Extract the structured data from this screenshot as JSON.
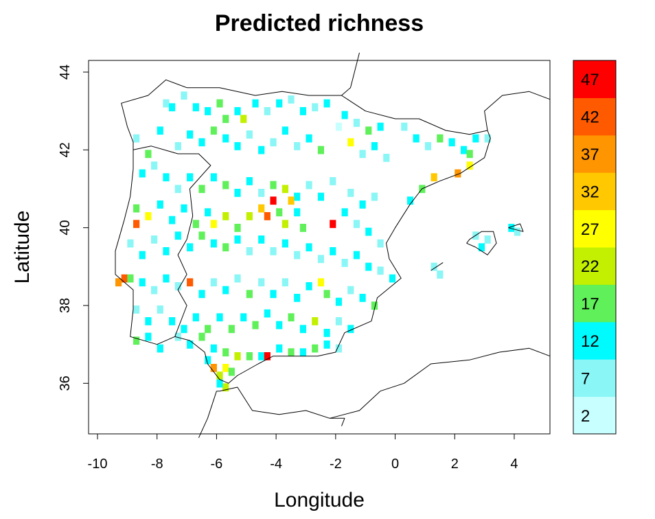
{
  "chart_data": {
    "type": "heatmap",
    "title": "Predicted richness",
    "xlabel": "Longitude",
    "ylabel": "Latitude",
    "xlim": [
      -10.3,
      5.2
    ],
    "ylim": [
      34.7,
      44.3
    ],
    "x_ticks": [
      -10,
      -8,
      -6,
      -4,
      -2,
      0,
      2,
      4
    ],
    "y_ticks": [
      36,
      38,
      40,
      42,
      44
    ],
    "grid": false,
    "legend": {
      "placement": "right",
      "bins": [
        {
          "label": "2",
          "color": "#c8ffff"
        },
        {
          "label": "7",
          "color": "#8af6f6"
        },
        {
          "label": "12",
          "color": "#00fbff"
        },
        {
          "label": "17",
          "color": "#5ff05a"
        },
        {
          "label": "22",
          "color": "#c2f000"
        },
        {
          "label": "27",
          "color": "#ffff00"
        },
        {
          "label": "32",
          "color": "#ffc800"
        },
        {
          "label": "37",
          "color": "#ff9500"
        },
        {
          "label": "42",
          "color": "#ff5a00"
        },
        {
          "label": "47",
          "color": "#ff0000"
        }
      ]
    },
    "cell_size_deg": 0.2,
    "cells_note_bins": "bin index 0-9 maps to legend bins",
    "cells": [
      [
        -1.9,
        42.6,
        0
      ],
      [
        -7.7,
        43.2,
        1
      ],
      [
        -7.5,
        43.1,
        2
      ],
      [
        -7.1,
        43.4,
        1
      ],
      [
        -6.7,
        43.1,
        2
      ],
      [
        -6.3,
        43.0,
        2
      ],
      [
        -5.9,
        43.2,
        3
      ],
      [
        -5.7,
        42.8,
        3
      ],
      [
        -5.3,
        43.0,
        2
      ],
      [
        -5.1,
        42.8,
        4
      ],
      [
        -4.7,
        43.2,
        2
      ],
      [
        -4.3,
        43.0,
        1
      ],
      [
        -3.9,
        43.2,
        2
      ],
      [
        -3.5,
        43.3,
        1
      ],
      [
        -3.1,
        43.0,
        2
      ],
      [
        -2.7,
        43.1,
        1
      ],
      [
        -2.3,
        43.2,
        2
      ],
      [
        -1.7,
        42.9,
        2
      ],
      [
        -1.3,
        42.7,
        1
      ],
      [
        -0.9,
        42.5,
        3
      ],
      [
        -0.5,
        42.6,
        2
      ],
      [
        0.3,
        42.6,
        1
      ],
      [
        0.7,
        42.3,
        2
      ],
      [
        1.1,
        42.1,
        1
      ],
      [
        1.5,
        42.3,
        3
      ],
      [
        1.9,
        42.2,
        2
      ],
      [
        2.3,
        42.0,
        2
      ],
      [
        2.5,
        41.9,
        3
      ],
      [
        2.7,
        42.3,
        2
      ],
      [
        3.1,
        42.3,
        1
      ],
      [
        2.5,
        41.6,
        5
      ],
      [
        2.1,
        41.4,
        7
      ],
      [
        1.3,
        41.3,
        6
      ],
      [
        0.9,
        41.0,
        3
      ],
      [
        0.5,
        40.7,
        2
      ],
      [
        -8.7,
        42.3,
        1
      ],
      [
        -8.3,
        41.9,
        3
      ],
      [
        -7.9,
        42.5,
        2
      ],
      [
        -7.3,
        42.1,
        1
      ],
      [
        -6.9,
        42.4,
        2
      ],
      [
        -6.5,
        42.2,
        2
      ],
      [
        -6.1,
        42.5,
        3
      ],
      [
        -5.7,
        42.3,
        2
      ],
      [
        -5.3,
        42.1,
        2
      ],
      [
        -4.9,
        42.4,
        1
      ],
      [
        -4.5,
        42.0,
        2
      ],
      [
        -4.1,
        42.2,
        1
      ],
      [
        -3.7,
        42.5,
        2
      ],
      [
        -3.3,
        42.1,
        1
      ],
      [
        -2.9,
        42.3,
        2
      ],
      [
        -2.5,
        42.0,
        3
      ],
      [
        -1.5,
        42.2,
        5
      ],
      [
        -1.1,
        41.9,
        1
      ],
      [
        -0.7,
        42.1,
        2
      ],
      [
        -0.3,
        41.8,
        1
      ],
      [
        -8.5,
        41.4,
        2
      ],
      [
        -8.1,
        41.6,
        1
      ],
      [
        -7.7,
        41.3,
        2
      ],
      [
        -7.3,
        41.0,
        1
      ],
      [
        -6.9,
        41.3,
        2
      ],
      [
        -6.5,
        41.0,
        3
      ],
      [
        -6.1,
        41.3,
        2
      ],
      [
        -5.7,
        41.1,
        3
      ],
      [
        -5.3,
        40.9,
        2
      ],
      [
        -4.9,
        41.2,
        2
      ],
      [
        -4.5,
        40.9,
        1
      ],
      [
        -4.1,
        41.1,
        3
      ],
      [
        -3.7,
        41.0,
        4
      ],
      [
        -3.3,
        40.8,
        2
      ],
      [
        -2.9,
        41.1,
        1
      ],
      [
        -2.5,
        40.8,
        2
      ],
      [
        -2.1,
        41.2,
        1
      ],
      [
        -1.5,
        40.9,
        1
      ],
      [
        -1.1,
        40.6,
        2
      ],
      [
        -0.7,
        40.8,
        1
      ],
      [
        -8.7,
        40.5,
        3
      ],
      [
        -8.7,
        40.1,
        8
      ],
      [
        -8.3,
        40.3,
        5
      ],
      [
        -7.9,
        40.6,
        2
      ],
      [
        -7.5,
        40.2,
        2
      ],
      [
        -7.1,
        40.5,
        2
      ],
      [
        -6.7,
        40.1,
        3
      ],
      [
        -6.3,
        40.4,
        2
      ],
      [
        -6.1,
        40.1,
        5
      ],
      [
        -5.7,
        40.3,
        4
      ],
      [
        -5.3,
        40.0,
        3
      ],
      [
        -4.9,
        40.3,
        4
      ],
      [
        -4.5,
        40.5,
        6
      ],
      [
        -4.3,
        40.3,
        8
      ],
      [
        -4.1,
        40.7,
        9
      ],
      [
        -3.9,
        40.4,
        3
      ],
      [
        -3.7,
        40.1,
        4
      ],
      [
        -3.5,
        40.7,
        6
      ],
      [
        -3.3,
        40.4,
        2
      ],
      [
        -3.1,
        40.0,
        3
      ],
      [
        -2.1,
        40.1,
        9
      ],
      [
        -1.7,
        40.4,
        2
      ],
      [
        -1.3,
        40.1,
        1
      ],
      [
        -0.9,
        39.9,
        2
      ],
      [
        -0.5,
        39.6,
        1
      ],
      [
        -8.9,
        39.6,
        1
      ],
      [
        -8.5,
        39.3,
        2
      ],
      [
        -8.1,
        39.7,
        1
      ],
      [
        -7.7,
        39.4,
        2
      ],
      [
        -7.3,
        39.8,
        2
      ],
      [
        -6.9,
        39.5,
        2
      ],
      [
        -6.5,
        39.8,
        3
      ],
      [
        -6.1,
        39.6,
        2
      ],
      [
        -5.7,
        39.5,
        3
      ],
      [
        -5.3,
        39.7,
        2
      ],
      [
        -4.9,
        39.4,
        1
      ],
      [
        -4.5,
        39.7,
        2
      ],
      [
        -4.1,
        39.4,
        1
      ],
      [
        -3.7,
        39.6,
        2
      ],
      [
        -3.3,
        39.3,
        1
      ],
      [
        -2.9,
        39.5,
        2
      ],
      [
        -2.5,
        39.2,
        1
      ],
      [
        -2.1,
        39.4,
        2
      ],
      [
        -1.7,
        39.1,
        1
      ],
      [
        -1.3,
        39.3,
        2
      ],
      [
        -0.9,
        39.0,
        2
      ],
      [
        -0.5,
        38.9,
        1
      ],
      [
        -0.1,
        38.7,
        2
      ],
      [
        -9.1,
        38.7,
        8
      ],
      [
        -9.3,
        38.6,
        7
      ],
      [
        -8.9,
        38.7,
        3
      ],
      [
        -8.5,
        38.6,
        2
      ],
      [
        -8.1,
        38.4,
        1
      ],
      [
        -7.7,
        38.7,
        2
      ],
      [
        -7.3,
        38.5,
        1
      ],
      [
        -6.9,
        38.6,
        8
      ],
      [
        -6.5,
        38.3,
        2
      ],
      [
        -6.1,
        38.6,
        1
      ],
      [
        -5.7,
        38.4,
        2
      ],
      [
        -5.3,
        38.7,
        1
      ],
      [
        -4.9,
        38.3,
        3
      ],
      [
        -4.5,
        38.6,
        1
      ],
      [
        -4.1,
        38.3,
        2
      ],
      [
        -3.7,
        38.6,
        1
      ],
      [
        -3.3,
        38.2,
        2
      ],
      [
        -2.9,
        38.5,
        2
      ],
      [
        -2.5,
        38.6,
        5
      ],
      [
        -2.3,
        38.3,
        3
      ],
      [
        -1.9,
        38.1,
        2
      ],
      [
        -1.5,
        38.4,
        1
      ],
      [
        -1.1,
        38.2,
        2
      ],
      [
        -0.7,
        38.0,
        3
      ],
      [
        -8.7,
        37.9,
        1
      ],
      [
        -8.3,
        37.6,
        2
      ],
      [
        -7.9,
        37.9,
        1
      ],
      [
        -7.5,
        37.6,
        2
      ],
      [
        -7.1,
        37.4,
        2
      ],
      [
        -6.7,
        37.7,
        2
      ],
      [
        -6.3,
        37.4,
        3
      ],
      [
        -5.9,
        37.7,
        2
      ],
      [
        -5.5,
        37.4,
        3
      ],
      [
        -5.1,
        37.7,
        2
      ],
      [
        -4.7,
        37.5,
        3
      ],
      [
        -4.3,
        37.8,
        2
      ],
      [
        -3.9,
        37.5,
        2
      ],
      [
        -3.5,
        37.7,
        3
      ],
      [
        -3.1,
        37.4,
        2
      ],
      [
        -2.7,
        37.6,
        4
      ],
      [
        -2.3,
        37.3,
        2
      ],
      [
        -1.9,
        37.6,
        1
      ],
      [
        -1.5,
        37.4,
        2
      ],
      [
        -8.7,
        37.1,
        3
      ],
      [
        -8.3,
        37.2,
        2
      ],
      [
        -7.9,
        36.9,
        2
      ],
      [
        -7.3,
        37.2,
        1
      ],
      [
        -6.9,
        37.0,
        2
      ],
      [
        -6.5,
        37.2,
        3
      ],
      [
        -6.1,
        36.9,
        2
      ],
      [
        -5.7,
        36.8,
        3
      ],
      [
        -5.3,
        36.7,
        4
      ],
      [
        -4.9,
        36.7,
        3
      ],
      [
        -4.5,
        36.7,
        2
      ],
      [
        -4.3,
        36.7,
        9
      ],
      [
        -3.9,
        36.9,
        2
      ],
      [
        -3.5,
        36.8,
        3
      ],
      [
        -3.1,
        36.8,
        2
      ],
      [
        -2.7,
        36.9,
        3
      ],
      [
        -2.3,
        37.0,
        2
      ],
      [
        -1.9,
        36.9,
        1
      ],
      [
        -6.3,
        36.6,
        2
      ],
      [
        -6.1,
        36.4,
        7
      ],
      [
        -5.9,
        36.2,
        4
      ],
      [
        -5.7,
        36.4,
        5
      ],
      [
        -5.5,
        36.3,
        3
      ],
      [
        -5.7,
        35.9,
        4
      ],
      [
        -5.9,
        36.0,
        2
      ],
      [
        1.3,
        39.0,
        1
      ],
      [
        1.5,
        38.8,
        1
      ],
      [
        2.7,
        39.8,
        1
      ],
      [
        3.1,
        39.7,
        1
      ],
      [
        2.9,
        39.5,
        2
      ],
      [
        3.9,
        40.0,
        2
      ],
      [
        4.1,
        39.9,
        1
      ]
    ]
  }
}
